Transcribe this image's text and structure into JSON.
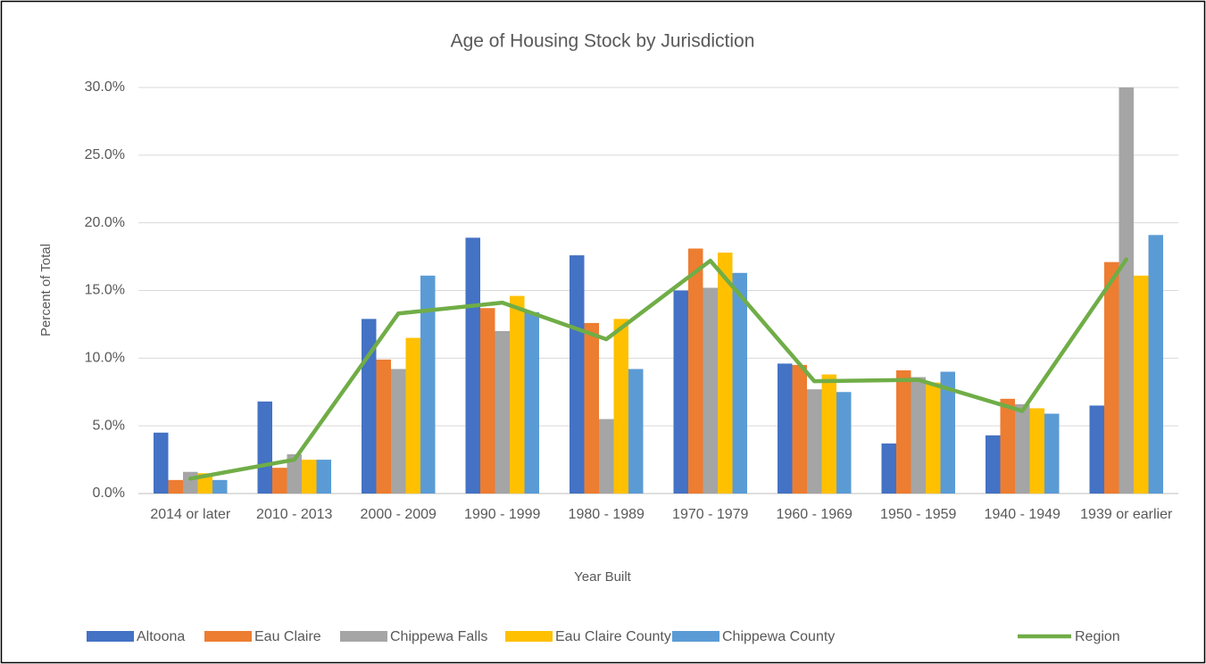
{
  "chart_data": {
    "type": "bar",
    "title": "Age of Housing Stock by Jurisdiction",
    "x_label": "Year Built",
    "y_label": "Percent of Total",
    "categories": [
      "2014 or later",
      "2010 - 2013",
      "2000 - 2009",
      "1990 - 1999",
      "1980 - 1989",
      "1970 - 1979",
      "1960 - 1969",
      "1950 - 1959",
      "1940 - 1949",
      "1939 or earlier"
    ],
    "series": [
      {
        "name": "Altoona",
        "color": "#4472c4",
        "values": [
          4.5,
          6.8,
          12.9,
          18.9,
          17.6,
          15.0,
          9.6,
          3.7,
          4.3,
          6.5
        ]
      },
      {
        "name": "Eau Claire",
        "color": "#ed7d31",
        "values": [
          1.0,
          1.9,
          9.9,
          13.7,
          12.6,
          18.1,
          9.5,
          9.1,
          7.0,
          17.1
        ]
      },
      {
        "name": "Chippewa Falls",
        "color": "#a5a5a5",
        "values": [
          1.6,
          2.9,
          9.2,
          12.0,
          5.5,
          15.2,
          7.7,
          8.6,
          6.6,
          30.0
        ]
      },
      {
        "name": "Eau Claire County",
        "color": "#ffc000",
        "values": [
          1.5,
          2.5,
          11.5,
          14.6,
          12.9,
          17.8,
          8.8,
          8.2,
          6.3,
          16.1
        ]
      },
      {
        "name": "Chippewa County",
        "color": "#5b9bd5",
        "values": [
          1.0,
          2.5,
          16.1,
          13.4,
          9.2,
          16.3,
          7.5,
          9.0,
          5.9,
          19.1
        ]
      },
      {
        "name": "Region",
        "color": "#70ad47",
        "type": "line",
        "values": [
          1.1,
          2.5,
          13.3,
          14.1,
          11.4,
          17.2,
          8.3,
          8.4,
          6.1,
          17.3
        ]
      }
    ],
    "ylim": [
      0,
      30
    ],
    "yticks": [
      {
        "value": 0,
        "label": "0.0%"
      },
      {
        "value": 5,
        "label": "5.0%"
      },
      {
        "value": 10,
        "label": "10.0%"
      },
      {
        "value": 15,
        "label": "15.0%"
      },
      {
        "value": 20,
        "label": "20.0%"
      },
      {
        "value": 25,
        "label": "25.0%"
      },
      {
        "value": 30,
        "label": "30.0%"
      }
    ],
    "grid": true,
    "legend": "bottom"
  }
}
